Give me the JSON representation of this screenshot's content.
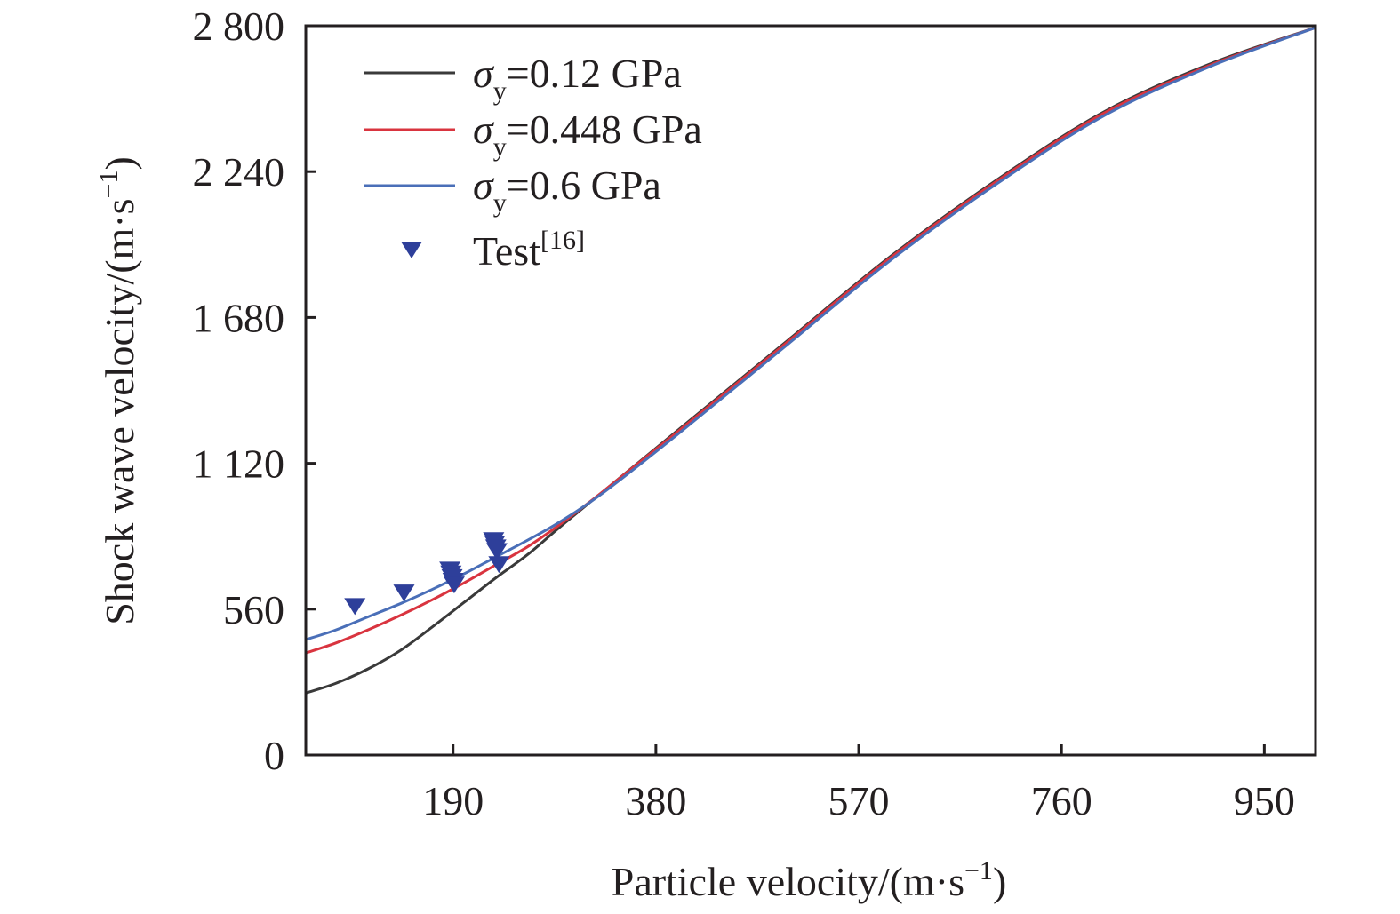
{
  "chart_data": {
    "type": "line",
    "title": "",
    "xlabel": "Particle velocity/(m·s",
    "xlabel_sup": "−1",
    "xlabel_end": ")",
    "ylabel": "Shock wave velocity/(m·s",
    "ylabel_sup": "−1",
    "ylabel_end": ")",
    "xlim": [
      52,
      998
    ],
    "ylim": [
      0,
      2800
    ],
    "xticks": [
      190,
      380,
      570,
      760,
      950
    ],
    "xtick_labels": [
      "190",
      "380",
      "570",
      "760",
      "950"
    ],
    "yticks": [
      0,
      560,
      1120,
      1680,
      2240,
      2800
    ],
    "ytick_labels": [
      "0",
      "560",
      "1 120",
      "1 680",
      "2 240",
      "2 800"
    ],
    "grid": false,
    "legend_position": "top-left",
    "series": [
      {
        "name": "σy=0.12 GPa",
        "label_symbol": "σ",
        "label_sub": "y",
        "label_rest": "=0.12 GPa",
        "kind": "line",
        "color": "#3a3a3a",
        "x": [
          52,
          80,
          110,
          140,
          170,
          200,
          230,
          260,
          290,
          330,
          400,
          500,
          600,
          700,
          800,
          900,
          998
        ],
        "y": [
          238,
          275,
          330,
          400,
          490,
          585,
          680,
          770,
          875,
          1010,
          1245,
          1580,
          1915,
          2210,
          2470,
          2655,
          2793
        ]
      },
      {
        "name": "σy=0.448 GPa",
        "label_symbol": "σ",
        "label_sub": "y",
        "label_rest": "=0.448 GPa",
        "kind": "line",
        "color": "#d9343f",
        "x": [
          52,
          80,
          110,
          140,
          170,
          200,
          230,
          260,
          290,
          330,
          400,
          500,
          600,
          700,
          800,
          900,
          998
        ],
        "y": [
          392,
          430,
          480,
          535,
          595,
          660,
          730,
          800,
          885,
          1010,
          1240,
          1575,
          1910,
          2205,
          2465,
          2650,
          2793
        ]
      },
      {
        "name": "σy=0.6 GPa",
        "label_symbol": "σ",
        "label_sub": "y",
        "label_rest": "=0.6 GPa",
        "kind": "line",
        "color": "#4a6fb8",
        "x": [
          52,
          80,
          110,
          140,
          170,
          200,
          230,
          260,
          290,
          330,
          400,
          500,
          600,
          700,
          800,
          900,
          998
        ],
        "y": [
          443,
          480,
          530,
          580,
          635,
          695,
          760,
          825,
          895,
          1005,
          1230,
          1565,
          1900,
          2195,
          2455,
          2645,
          2793
        ]
      },
      {
        "name": "Test[16]",
        "label_text": "Test",
        "label_sup": "[16]",
        "kind": "scatter",
        "marker": "triangle-down",
        "color": "#2e3f9a",
        "x": [
          98,
          144,
          187,
          188,
          189,
          190,
          191,
          228,
          229,
          230,
          231,
          233
        ],
        "y": [
          575,
          627,
          715,
          700,
          686,
          672,
          658,
          828,
          815,
          800,
          786,
          736
        ]
      }
    ]
  }
}
